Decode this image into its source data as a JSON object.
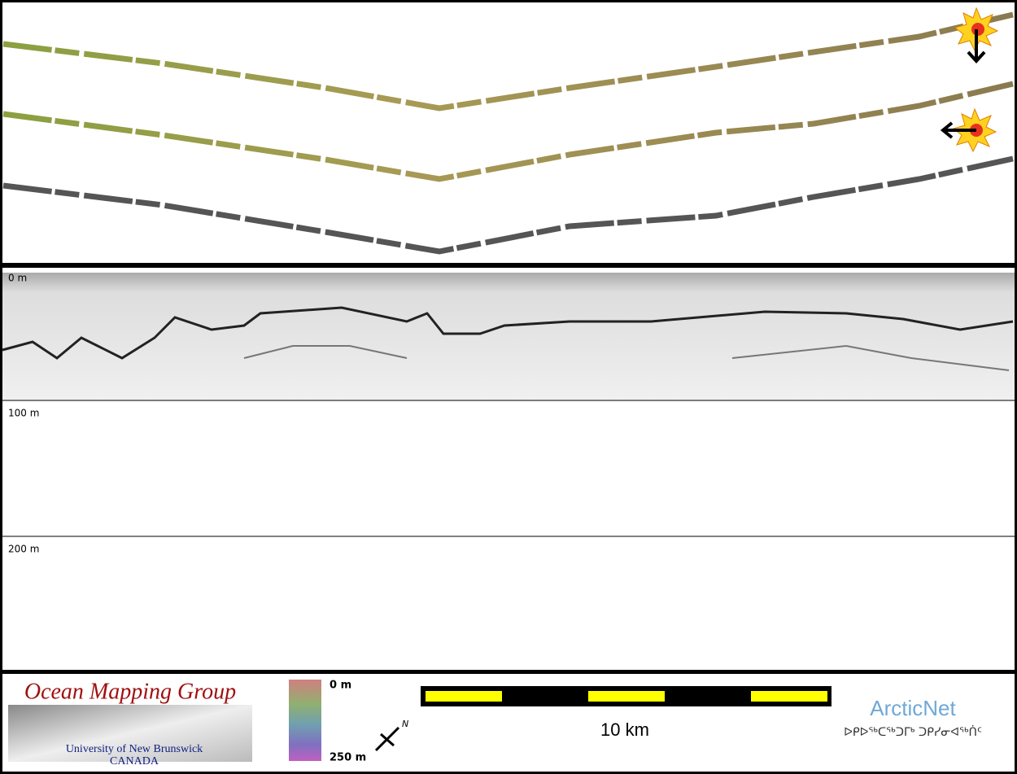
{
  "profile": {
    "depth_labels": [
      "0 m",
      "100 m",
      "200 m"
    ]
  },
  "footer": {
    "logo": {
      "title": "Ocean Mapping Group",
      "university": "University of New Brunswick",
      "country": "CANADA"
    },
    "colorbar": {
      "top_label": "0 m",
      "bottom_label": "250 m"
    },
    "north_label": "N",
    "scale_label": "10 km",
    "partner": {
      "name": "ArcticNet",
      "syllabics": "ᐅᑭᐅᖅᑕᖅᑐᒥᒃ ᑐᑭᓯᓂᐊᖅᑏᑦ"
    }
  }
}
